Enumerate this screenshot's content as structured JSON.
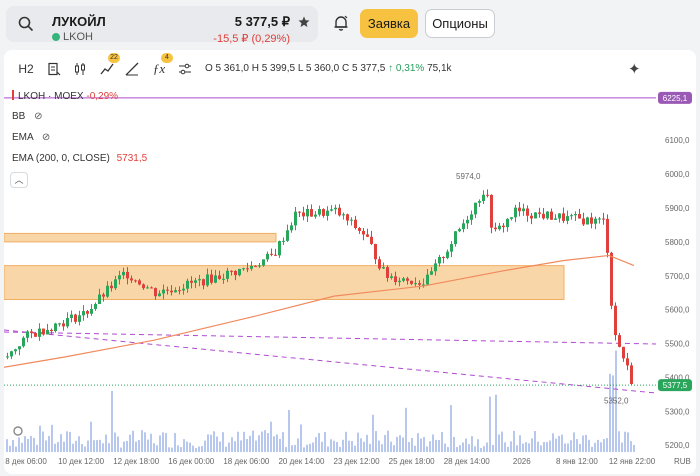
{
  "header": {
    "search_icon": "search-icon",
    "name": "ЛУКОЙЛ",
    "code": "LKOH",
    "price": "5 377,5 ₽",
    "change": "-15,5 ₽ (0,29%)",
    "order_label": "Заявка",
    "options_label": "Опционы"
  },
  "toolbar": {
    "interval": "H2",
    "indicators_badge": "22",
    "drawing_badge": "4",
    "ohlc_o": "O 5 361,0",
    "ohlc_h": "H 5 399,5",
    "ohlc_l": "L 5 360,0",
    "ohlc_c": "C 5 377,5",
    "ohlc_pct": "↑ 0,31%",
    "ohlc_vol": "75,1k"
  },
  "legend": {
    "symbol": "LKOH · MOEX",
    "symbol_change": "-0,29%",
    "bb": "BB",
    "ema1": "EMA",
    "ema2": "EMA (200, 0, CLOSE)",
    "ema2_value": "5731,5"
  },
  "axis": {
    "price_ticks": [
      "6100,0",
      "6000,0",
      "5900,0",
      "5800,0",
      "5700,0",
      "5600,0",
      "5500,0",
      "5400,0",
      "5300,0",
      "5200,0"
    ],
    "time_ticks": [
      "8 дек 06:00",
      "10 дек 12:00",
      "12 дек 18:00",
      "16 дек 00:00",
      "18 дек 06:00",
      "20 дек 14:00",
      "23 дек 12:00",
      "25 дек 18:00",
      "28 дек 14:00",
      "2026",
      "8 янв 12:00",
      "12 янв 22:00"
    ],
    "currency": "RUB",
    "level_top": "6225,1",
    "last_price": "5377,5",
    "high_label": "5974,0",
    "low_label": "5352,0"
  },
  "colors": {
    "up": "#2aa65c",
    "down": "#e0403b",
    "ema": "#f08a5d",
    "zone_fill": "#f8cf98",
    "zone_stroke": "#f0a04b",
    "trend": "#b14ad1",
    "last_price": "#2aa65c",
    "volume": "#b7c7ee"
  },
  "chart_data": {
    "type": "candlestick",
    "ylim": [
      5180,
      6260
    ],
    "x": [
      "8 дек 06:00",
      "10 дек 12:00",
      "12 дек 18:00",
      "16 дек 00:00",
      "18 дек 06:00",
      "20 дек 14:00",
      "23 дек 12:00",
      "25 дек 18:00",
      "28 дек 14:00",
      "2026",
      "8 янв 12:00",
      "12 янв 22:00"
    ],
    "close_path": [
      {
        "x": "8 дек 06:00",
        "y": 5460
      },
      {
        "x": "8 дек 06:00",
        "y": 5520
      },
      {
        "x": "10 дек 12:00",
        "y": 5550
      },
      {
        "x": "10 дек 12:00",
        "y": 5590
      },
      {
        "x": "12 дек 18:00",
        "y": 5710
      },
      {
        "x": "12 дек 18:00",
        "y": 5650
      },
      {
        "x": "16 дек 00:00",
        "y": 5680
      },
      {
        "x": "16 дек 00:00",
        "y": 5720
      },
      {
        "x": "18 дек 06:00",
        "y": 5760
      },
      {
        "x": "18 дек 06:00",
        "y": 5880
      },
      {
        "x": "20 дек 14:00",
        "y": 5890
      },
      {
        "x": "20 дек 14:00",
        "y": 5820
      },
      {
        "x": "23 дек 12:00",
        "y": 5700
      },
      {
        "x": "25 дек 18:00",
        "y": 5680
      },
      {
        "x": "25 дек 18:00",
        "y": 5770
      },
      {
        "x": "28 дек 14:00",
        "y": 5960
      },
      {
        "x": "28 дек 14:00",
        "y": 5820
      },
      {
        "x": "2026",
        "y": 5890
      },
      {
        "x": "8 янв 12:00",
        "y": 5870
      },
      {
        "x": "8 янв 12:00",
        "y": 5860
      },
      {
        "x": "12 янв 22:00",
        "y": 5540
      },
      {
        "x": "12 янв 22:00",
        "y": 5377.5
      }
    ],
    "ema200_last": 5731.5,
    "high": 5974.0,
    "low": 5352.0,
    "last": 5377.5,
    "level": 6225.1,
    "zones": [
      {
        "from": 5800,
        "to": 5825
      },
      {
        "from": 5630,
        "to": 5730
      }
    ]
  }
}
